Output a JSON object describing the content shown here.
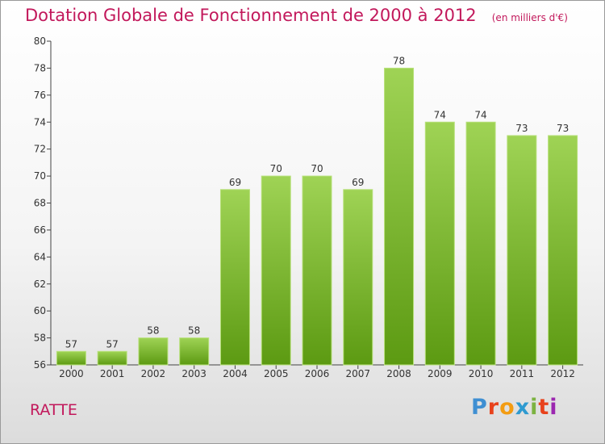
{
  "header": {
    "title": "Dotation Globale de Fonctionnement de 2000 à 2012",
    "subtitle": "(en milliers d'€)"
  },
  "commune": "RATTE",
  "logo": {
    "text": "Proxiti",
    "colors": [
      "#3f8fd2",
      "#e8421c",
      "#f39c12",
      "#2e9ad0",
      "#7cb342",
      "#e8421c",
      "#9c27b0"
    ]
  },
  "chart_data": {
    "type": "bar",
    "categories": [
      "2000",
      "2001",
      "2002",
      "2003",
      "2004",
      "2005",
      "2006",
      "2007",
      "2008",
      "2009",
      "2010",
      "2011",
      "2012"
    ],
    "values": [
      57,
      57,
      58,
      58,
      69,
      70,
      70,
      69,
      78,
      74,
      74,
      73,
      73
    ],
    "title": "Dotation Globale de Fonctionnement de 2000 à 2012",
    "subtitle": "(en milliers d'€)",
    "xlabel": "",
    "ylabel": "",
    "ylim": [
      56,
      80
    ],
    "yticks": [
      56,
      58,
      60,
      62,
      64,
      66,
      68,
      70,
      72,
      74,
      76,
      78,
      80
    ],
    "grid": false,
    "bar_color": "#7cb829"
  }
}
